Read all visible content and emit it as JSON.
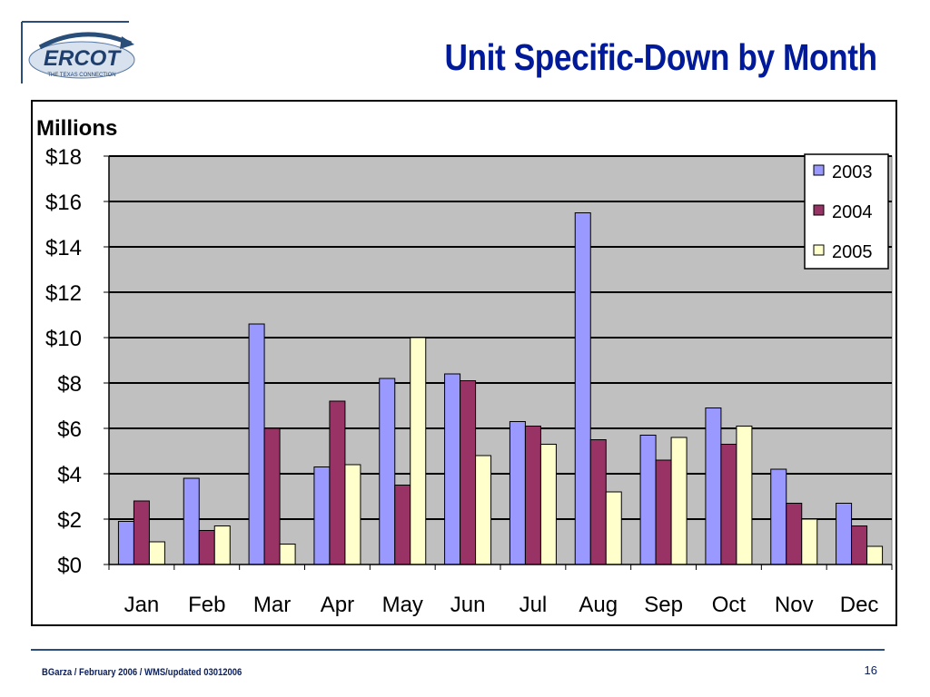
{
  "slide": {
    "title": "Unit Specific-Down by Month",
    "footer": "BGarza / February 2006 / WMS/updated 03012006",
    "page_number": "16"
  },
  "logo": {
    "name": "ERCOT",
    "tagline": "THE TEXAS CONNECTION"
  },
  "colors": {
    "title": "#001a99",
    "plot_bg": "#c0c0c0",
    "series_2003": "#9999ff",
    "series_2004": "#993366",
    "series_2005": "#ffffcc"
  },
  "chart_data": {
    "type": "bar",
    "title": "",
    "ylabel": "Millions",
    "xlabel": "",
    "categories": [
      "Jan",
      "Feb",
      "Mar",
      "Apr",
      "May",
      "Jun",
      "Jul",
      "Aug",
      "Sep",
      "Oct",
      "Nov",
      "Dec"
    ],
    "series": [
      {
        "name": "2003",
        "values": [
          1.9,
          3.8,
          10.6,
          4.3,
          8.2,
          8.4,
          6.3,
          15.5,
          5.7,
          6.9,
          4.2,
          2.7
        ]
      },
      {
        "name": "2004",
        "values": [
          2.8,
          1.5,
          6.0,
          7.2,
          3.5,
          8.1,
          6.1,
          5.5,
          4.6,
          5.3,
          2.7,
          1.7
        ]
      },
      {
        "name": "2005",
        "values": [
          1.0,
          1.7,
          0.9,
          4.4,
          10.0,
          4.8,
          5.3,
          3.2,
          5.6,
          6.1,
          2.0,
          0.8
        ]
      }
    ],
    "ylim": [
      0,
      18
    ],
    "yticks": [
      "$0",
      "$2",
      "$4",
      "$6",
      "$8",
      "$10",
      "$12",
      "$14",
      "$16",
      "$18"
    ],
    "grid": true,
    "legend_position": "top-right"
  }
}
